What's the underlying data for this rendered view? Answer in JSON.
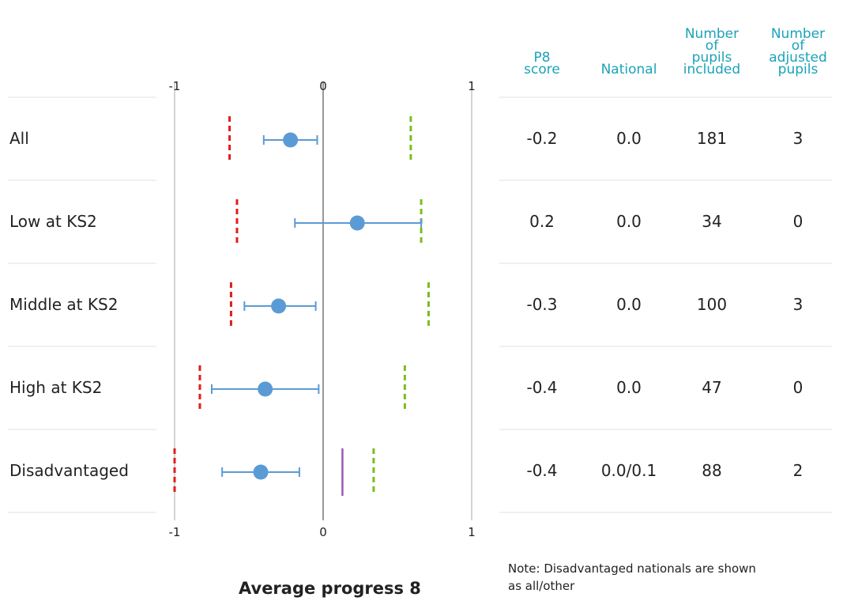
{
  "chart_data": {
    "type": "forest",
    "xlabel": "Average progress 8",
    "xlim": [
      -1,
      1
    ],
    "xticks": [
      "-1",
      "0",
      "1"
    ],
    "rows": [
      {
        "label": "All",
        "score": -0.22,
        "ci": [
          -0.4,
          -0.04
        ],
        "lower_marker": -0.63,
        "upper_marker": 0.59,
        "national_marker": null
      },
      {
        "label": "Low at KS2",
        "score": 0.23,
        "ci": [
          -0.19,
          0.66
        ],
        "lower_marker": -0.58,
        "upper_marker": 0.66,
        "national_marker": null
      },
      {
        "label": "Middle at KS2",
        "score": -0.3,
        "ci": [
          -0.53,
          -0.05
        ],
        "lower_marker": -0.62,
        "upper_marker": 0.71,
        "national_marker": null
      },
      {
        "label": "High at KS2",
        "score": -0.39,
        "ci": [
          -0.75,
          -0.03
        ],
        "lower_marker": -0.83,
        "upper_marker": 0.55,
        "national_marker": null
      },
      {
        "label": "Disadvantaged",
        "score": -0.42,
        "ci": [
          -0.68,
          -0.16
        ],
        "lower_marker": -1.0,
        "upper_marker": 0.34,
        "national_marker": 0.13
      }
    ],
    "colors": {
      "point": "#5b9bd5",
      "lower": "#e11d1d",
      "upper": "#7cbd1e",
      "national": "#9b59b6",
      "header": "#1aa3b8"
    }
  },
  "table": {
    "headers": [
      {
        "lines": [
          "P8",
          "score"
        ]
      },
      {
        "lines": [
          "National"
        ]
      },
      {
        "lines": [
          "Number",
          "of",
          "pupils",
          "included"
        ]
      },
      {
        "lines": [
          "Number",
          "of",
          "adjusted",
          "pupils"
        ]
      }
    ],
    "rows": [
      [
        "-0.2",
        "0.0",
        "181",
        "3"
      ],
      [
        "0.2",
        "0.0",
        "34",
        "0"
      ],
      [
        "-0.3",
        "0.0",
        "100",
        "3"
      ],
      [
        "-0.4",
        "0.0",
        "47",
        "0"
      ],
      [
        "-0.4",
        "0.0/0.1",
        "88",
        "2"
      ]
    ]
  },
  "note": "Note: Disadvantaged nationals are shown as all/other"
}
